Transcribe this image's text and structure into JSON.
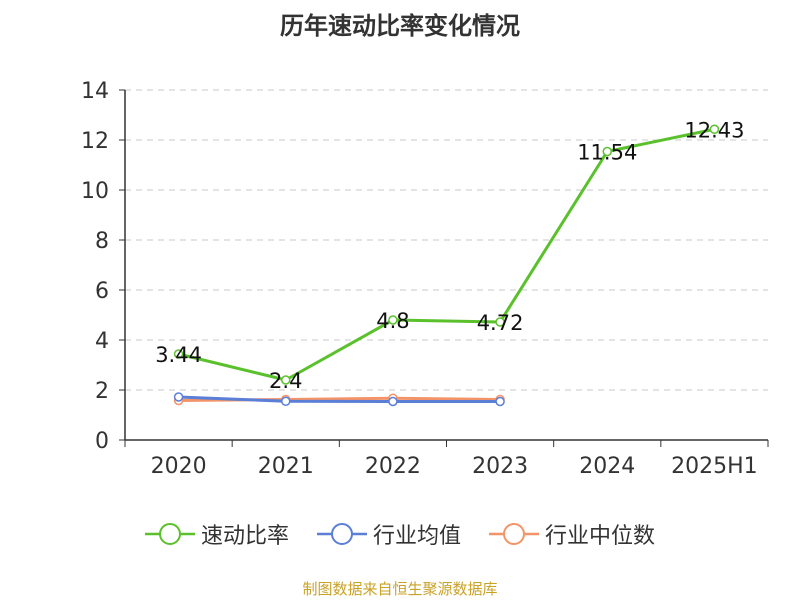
{
  "chart_data": {
    "type": "line",
    "title": "历年速动比率变化情况",
    "categories": [
      "2020",
      "2021",
      "2022",
      "2023",
      "2024",
      "2025H1"
    ],
    "ylim": [
      0,
      14
    ],
    "yticks": [
      0,
      2,
      4,
      6,
      8,
      10,
      12,
      14
    ],
    "grid": true,
    "legend_position": "bottom",
    "series": [
      {
        "name": "速动比率",
        "color": "#5ac12c",
        "values": [
          3.44,
          2.4,
          4.8,
          4.72,
          11.54,
          12.43
        ],
        "labels": [
          "3.44",
          "2.4",
          "4.8",
          "4.72",
          "11.54",
          "12.43"
        ]
      },
      {
        "name": "行业均值",
        "color": "#5b7fd6",
        "values": [
          1.72,
          1.55,
          1.54,
          1.54,
          null,
          null
        ]
      },
      {
        "name": "行业中位数",
        "color": "#f39468",
        "values": [
          1.58,
          1.62,
          1.67,
          1.62,
          null,
          null
        ]
      }
    ]
  },
  "footer": {
    "source": "制图数据来自恒生聚源数据库"
  }
}
